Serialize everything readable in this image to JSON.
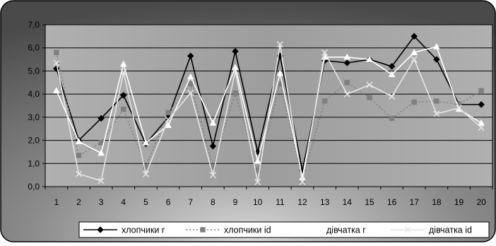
{
  "chart_data": {
    "type": "line",
    "x": [
      "1",
      "2",
      "3",
      "4",
      "5",
      "6",
      "7",
      "8",
      "9",
      "10",
      "11",
      "12",
      "13",
      "14",
      "15",
      "16",
      "17",
      "18",
      "19",
      "20"
    ],
    "ylim": [
      0,
      7
    ],
    "yticks": [
      "0,0",
      "1,0",
      "2,0",
      "3,0",
      "4,0",
      "5,0",
      "6,0",
      "7,0"
    ],
    "grid": true,
    "legend_position": "bottom",
    "colors": {
      "plot_background": "#a6a6a6",
      "frame_background": "#6b6b6b",
      "gridline": "#000000"
    },
    "series": [
      {
        "name": "хлопчики r",
        "values": [
          5.1,
          2.0,
          2.95,
          3.95,
          1.85,
          3.0,
          5.65,
          1.75,
          5.85,
          1.5,
          5.65,
          0.7,
          5.45,
          5.35,
          5.5,
          5.2,
          6.5,
          5.5,
          3.55,
          3.55
        ],
        "color": "#000000",
        "marker": "diamond",
        "dash": "solid"
      },
      {
        "name": "хлопчики id",
        "values": [
          5.8,
          1.35,
          1.9,
          3.35,
          0.85,
          3.2,
          4.45,
          0.85,
          4.05,
          0.7,
          4.45,
          0.3,
          3.7,
          4.5,
          3.85,
          2.95,
          3.65,
          3.7,
          3.55,
          4.15
        ],
        "color": "#7f7f7f",
        "marker": "square",
        "dash": "dotted"
      },
      {
        "name": "дівчатка r",
        "values": [
          4.15,
          1.95,
          1.45,
          5.3,
          1.9,
          2.65,
          4.75,
          2.75,
          5.15,
          1.1,
          4.9,
          0.4,
          5.6,
          5.6,
          5.5,
          4.85,
          5.8,
          6.05,
          3.35,
          2.75
        ],
        "color": "#ffffff",
        "marker": "triangle",
        "dash": "solid"
      },
      {
        "name": "дівчатка id",
        "values": [
          5.35,
          0.55,
          0.25,
          4.95,
          0.55,
          2.9,
          4.05,
          0.5,
          5.0,
          0.2,
          6.15,
          0.2,
          5.8,
          4.0,
          4.4,
          3.9,
          5.5,
          3.15,
          3.4,
          2.55
        ],
        "color": "#e6e6e6",
        "marker": "x",
        "dash": "solid"
      }
    ]
  }
}
